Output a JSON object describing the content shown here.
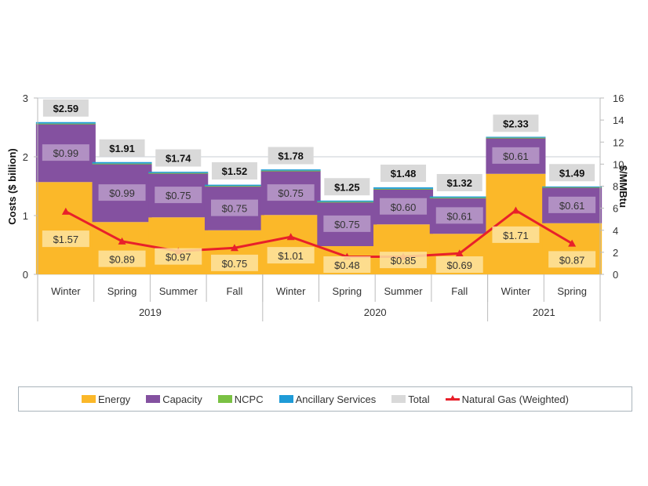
{
  "chart_data": {
    "type": "bar",
    "stacked": true,
    "title": "",
    "ylabel": "Costs ($ billion)",
    "y2label": "$/MMBtu",
    "ylim": [
      0,
      3
    ],
    "y2lim": [
      0,
      16
    ],
    "yticks": [
      "0",
      "1",
      "2",
      "3"
    ],
    "y2ticks": [
      "0",
      "2",
      "4",
      "6",
      "8",
      "10",
      "12",
      "14",
      "16"
    ],
    "grid": true,
    "categories": [
      "Winter",
      "Spring",
      "Summer",
      "Fall",
      "Winter",
      "Spring",
      "Summer",
      "Fall",
      "Winter",
      "Spring"
    ],
    "groups": [
      {
        "label": "2019",
        "count": 4
      },
      {
        "label": "2020",
        "count": 4
      },
      {
        "label": "2021",
        "count": 2
      }
    ],
    "series": [
      {
        "name": "Energy",
        "color": "#fbb829",
        "values": [
          1.57,
          0.89,
          0.97,
          0.75,
          1.01,
          0.48,
          0.85,
          0.69,
          1.71,
          0.87
        ],
        "labels": [
          "$1.57",
          "$0.89",
          "$0.97",
          "$0.75",
          "$1.01",
          "$0.48",
          "$0.85",
          "$0.69",
          "$1.71",
          "$0.87"
        ]
      },
      {
        "name": "Capacity",
        "color": "#8451a0",
        "values": [
          0.99,
          0.99,
          0.75,
          0.75,
          0.75,
          0.75,
          0.6,
          0.61,
          0.61,
          0.61
        ],
        "labels": [
          "$0.99",
          "$0.99",
          "$0.75",
          "$0.75",
          "$0.75",
          "$0.75",
          "$0.60",
          "$0.61",
          "$0.61",
          "$0.61"
        ]
      },
      {
        "name": "NCPC",
        "color": "#7ac143",
        "values": [
          0.005,
          0.005,
          0.005,
          0.005,
          0.005,
          0.005,
          0.005,
          0.005,
          0.005,
          0.005
        ]
      },
      {
        "name": "Ancillary Services",
        "color": "#1f9bd7",
        "values": [
          0.025,
          0.025,
          0.02,
          0.02,
          0.02,
          0.02,
          0.025,
          0.02,
          0.015,
          0.01
        ]
      },
      {
        "name": "Total",
        "color": "#d9d9d9",
        "values": [
          2.59,
          1.91,
          1.74,
          1.52,
          1.78,
          1.25,
          1.48,
          1.32,
          2.33,
          1.49
        ],
        "labels": [
          "$2.59",
          "$1.91",
          "$1.74",
          "$1.52",
          "$1.78",
          "$1.25",
          "$1.48",
          "$1.32",
          "$2.33",
          "$1.49"
        ]
      },
      {
        "name": "Natural Gas (Weighted)",
        "color": "#e8202a",
        "type": "line",
        "axis": "right",
        "values": [
          5.7,
          3.0,
          2.1,
          2.4,
          3.4,
          1.6,
          1.6,
          1.9,
          5.8,
          2.8
        ]
      }
    ],
    "legend": {
      "position": "bottom",
      "entries": [
        "Energy",
        "Capacity",
        "NCPC",
        "Ancillary Services",
        "Total",
        "Natural Gas (Weighted)"
      ]
    }
  }
}
